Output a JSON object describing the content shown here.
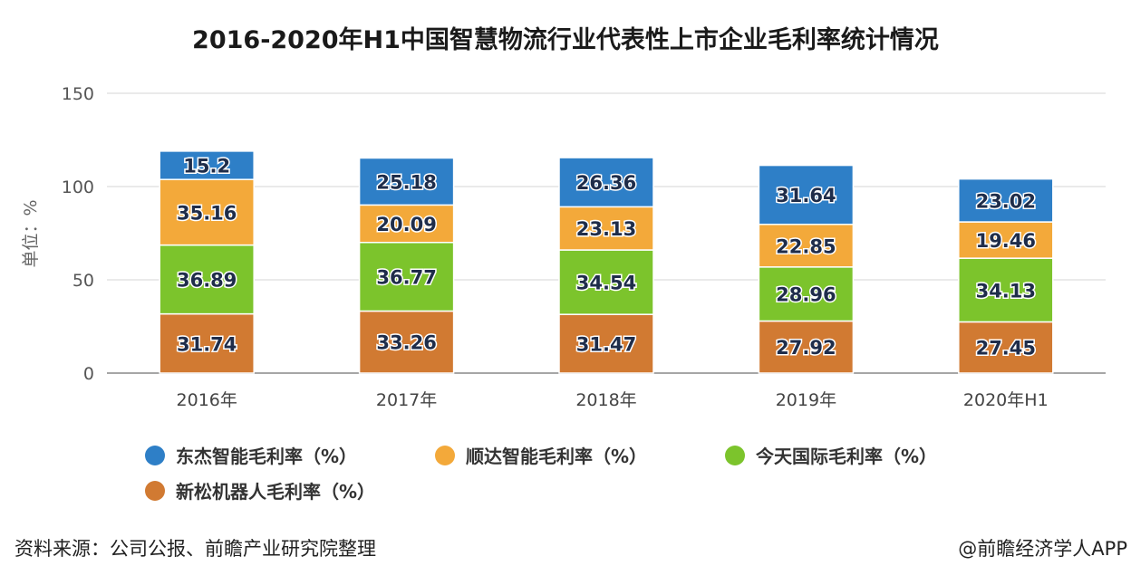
{
  "title": "2016-2020年H1中国智慧物流行业代表性上市企业毛利率统计情况",
  "chart_data": {
    "type": "bar",
    "stacked": true,
    "categories": [
      "2016年",
      "2017年",
      "2018年",
      "2019年",
      "2020年H1"
    ],
    "ylabel": "单位：%",
    "ylim": [
      0,
      150
    ],
    "yticks": [
      0,
      50,
      100,
      150
    ],
    "grid": true,
    "legend_position": "bottom",
    "series": [
      {
        "name": "新松机器人毛利率（%）",
        "color": "#d17a32",
        "values": [
          31.74,
          33.26,
          31.47,
          27.92,
          27.45
        ]
      },
      {
        "name": "今天国际毛利率（%）",
        "color": "#7cc42c",
        "values": [
          36.89,
          36.77,
          34.54,
          28.96,
          34.13
        ]
      },
      {
        "name": "顺达智能毛利率（%）",
        "color": "#f3a93a",
        "values": [
          35.16,
          20.09,
          23.13,
          22.85,
          19.46
        ]
      },
      {
        "name": "东杰智能毛利率（%）",
        "color": "#2e7fc7",
        "values": [
          15.2,
          25.18,
          26.36,
          31.64,
          23.02
        ]
      }
    ],
    "value_labels": [
      [
        "31.74",
        "33.26",
        "31.47",
        "27.92",
        "27.45"
      ],
      [
        "36.89",
        "36.77",
        "34.54",
        "28.96",
        "34.13"
      ],
      [
        "35.16",
        "20.09",
        "23.13",
        "22.85",
        "19.46"
      ],
      [
        "15.2",
        "25.18",
        "26.36",
        "31.64",
        "23.02"
      ]
    ]
  },
  "legend": {
    "items": [
      {
        "label": "东杰智能毛利率（%）",
        "color": "#2e7fc7"
      },
      {
        "label": "顺达智能毛利率（%）",
        "color": "#f3a93a"
      },
      {
        "label": "今天国际毛利率（%）",
        "color": "#7cc42c"
      },
      {
        "label": "新松机器人毛利率（%）",
        "color": "#d17a32"
      }
    ]
  },
  "footer": {
    "source": "资料来源：公司公报、前瞻产业研究院整理",
    "credit": "@前瞻经济学人APP"
  }
}
